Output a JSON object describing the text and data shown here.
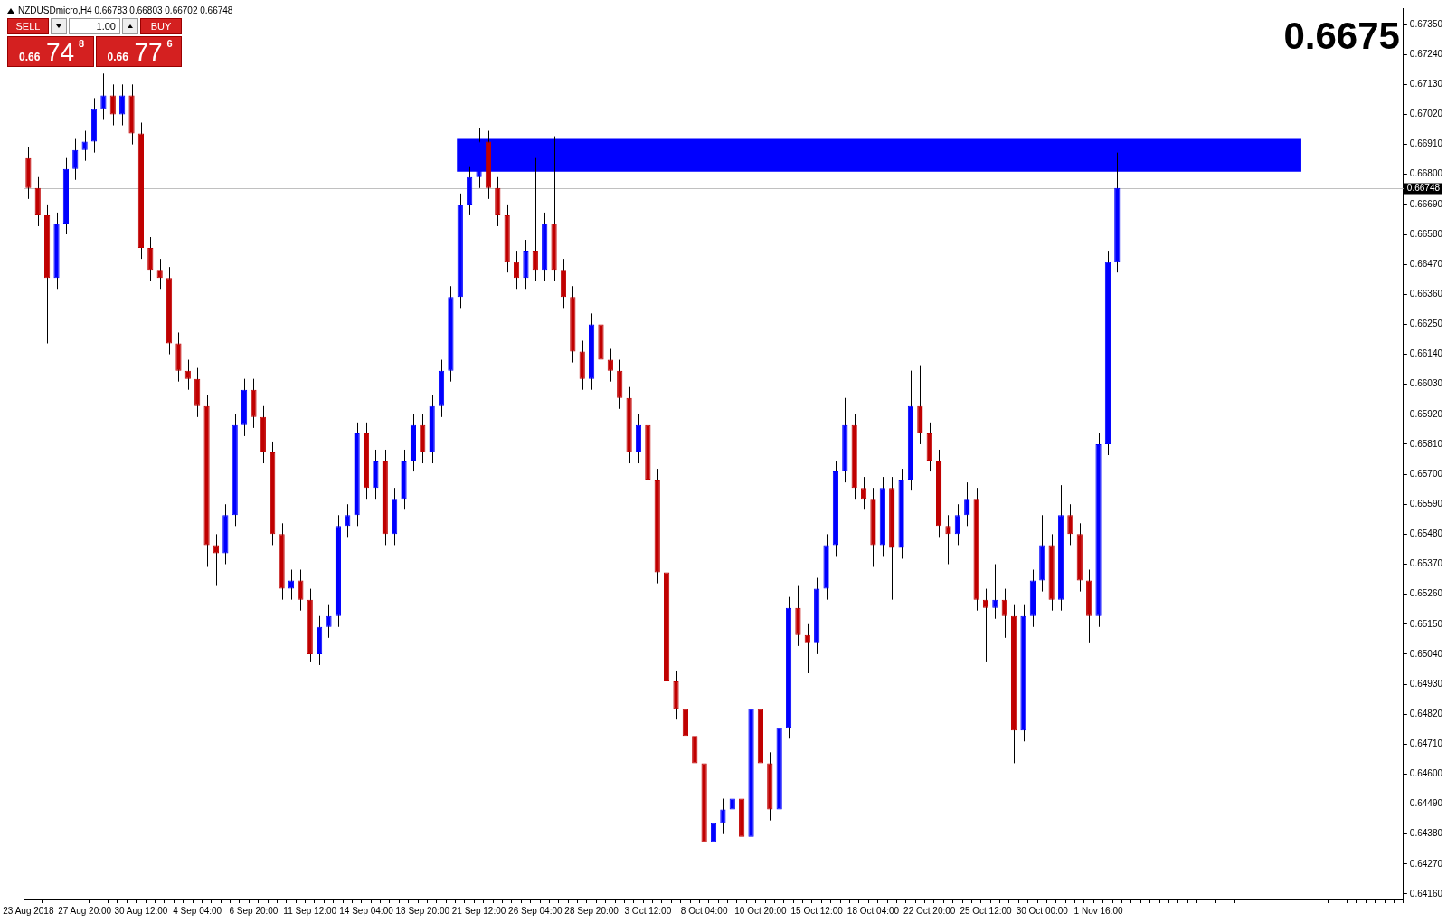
{
  "chart_data": {
    "type": "candlestick",
    "title": "NZDUSDmicro,H4  0.66783 0.66803 0.66702 0.66748",
    "categories": [
      "23 Aug 2018",
      null,
      null,
      null,
      null,
      null,
      "27 Aug 20:00",
      null,
      null,
      null,
      null,
      null,
      "30 Aug 12:00",
      null,
      null,
      null,
      null,
      null,
      "4 Sep 04:00",
      null,
      null,
      null,
      null,
      null,
      "6 Sep 20:00",
      null,
      null,
      null,
      null,
      null,
      "11 Sep 12:00",
      null,
      null,
      null,
      null,
      null,
      "14 Sep 04:00",
      null,
      null,
      null,
      null,
      null,
      "18 Sep 20:00",
      null,
      null,
      null,
      null,
      null,
      "21 Sep 12:00",
      null,
      null,
      null,
      null,
      null,
      "26 Sep 04:00",
      null,
      null,
      null,
      null,
      null,
      "28 Sep 20:00",
      null,
      null,
      null,
      null,
      null,
      "3 Oct 12:00",
      null,
      null,
      null,
      null,
      null,
      "8 Oct 04:00",
      null,
      null,
      null,
      null,
      null,
      "10 Oct 20:00",
      null,
      null,
      null,
      null,
      null,
      "15 Oct 12:00",
      null,
      null,
      null,
      null,
      null,
      "18 Oct 04:00",
      null,
      null,
      null,
      null,
      null,
      "22 Oct 20:00",
      null,
      null,
      null,
      null,
      null,
      "25 Oct 12:00",
      null,
      null,
      null,
      null,
      null,
      "30 Oct 00:00",
      null,
      null,
      null,
      null,
      null,
      "1 Nov 16:00",
      null,
      null,
      null,
      null,
      null,
      null,
      null,
      null,
      null,
      null,
      null,
      null,
      null,
      null,
      null,
      null,
      null,
      null,
      null,
      null,
      null,
      null,
      null,
      null,
      null,
      null,
      null,
      null,
      null,
      null,
      null,
      null
    ],
    "ohlc": [
      [
        0.6686,
        0.669,
        0.6671,
        0.6675
      ],
      [
        0.6675,
        0.6679,
        0.6661,
        0.6665
      ],
      [
        0.6665,
        0.6669,
        0.6618,
        0.6642
      ],
      [
        0.6642,
        0.6666,
        0.6638,
        0.6662
      ],
      [
        0.6662,
        0.6686,
        0.6658,
        0.6682
      ],
      [
        0.6682,
        0.6693,
        0.6678,
        0.6689
      ],
      [
        0.6689,
        0.6696,
        0.6685,
        0.6692
      ],
      [
        0.6692,
        0.6708,
        0.6688,
        0.6704
      ],
      [
        0.6704,
        0.6717,
        0.67,
        0.6709
      ],
      [
        0.6709,
        0.6713,
        0.6698,
        0.6702
      ],
      [
        0.6702,
        0.6713,
        0.6698,
        0.6709
      ],
      [
        0.6709,
        0.6713,
        0.6691,
        0.6695
      ],
      [
        0.6695,
        0.6699,
        0.6649,
        0.6653
      ],
      [
        0.6653,
        0.6657,
        0.6641,
        0.6645
      ],
      [
        0.6645,
        0.6649,
        0.6638,
        0.6642
      ],
      [
        0.6642,
        0.6646,
        0.6614,
        0.6618
      ],
      [
        0.6618,
        0.6622,
        0.6604,
        0.6608
      ],
      [
        0.6608,
        0.6612,
        0.6601,
        0.6605
      ],
      [
        0.6605,
        0.6609,
        0.6591,
        0.6595
      ],
      [
        0.6595,
        0.6599,
        0.6536,
        0.6544
      ],
      [
        0.6544,
        0.6548,
        0.6529,
        0.6541
      ],
      [
        0.6541,
        0.6559,
        0.6537,
        0.6555
      ],
      [
        0.6555,
        0.6592,
        0.6551,
        0.6588
      ],
      [
        0.6588,
        0.6605,
        0.6584,
        0.6601
      ],
      [
        0.6601,
        0.6605,
        0.6587,
        0.6591
      ],
      [
        0.6591,
        0.6595,
        0.6574,
        0.6578
      ],
      [
        0.6578,
        0.6582,
        0.6544,
        0.6548
      ],
      [
        0.6548,
        0.6552,
        0.6524,
        0.6528
      ],
      [
        0.6528,
        0.6535,
        0.6524,
        0.6531
      ],
      [
        0.6531,
        0.6535,
        0.652,
        0.6524
      ],
      [
        0.6524,
        0.6528,
        0.6501,
        0.6504
      ],
      [
        0.6504,
        0.6518,
        0.65,
        0.6514
      ],
      [
        0.6514,
        0.6522,
        0.651,
        0.6518
      ],
      [
        0.6518,
        0.6555,
        0.6514,
        0.6551
      ],
      [
        0.6551,
        0.6559,
        0.6547,
        0.6555
      ],
      [
        0.6555,
        0.6589,
        0.6551,
        0.6585
      ],
      [
        0.6585,
        0.6589,
        0.6561,
        0.6565
      ],
      [
        0.6565,
        0.6579,
        0.6561,
        0.6575
      ],
      [
        0.6575,
        0.6579,
        0.6544,
        0.6548
      ],
      [
        0.6548,
        0.6565,
        0.6544,
        0.6561
      ],
      [
        0.6561,
        0.6579,
        0.6557,
        0.6575
      ],
      [
        0.6575,
        0.6592,
        0.6571,
        0.6588
      ],
      [
        0.6588,
        0.6592,
        0.6574,
        0.6578
      ],
      [
        0.6578,
        0.6599,
        0.6574,
        0.6595
      ],
      [
        0.6595,
        0.6612,
        0.6591,
        0.6608
      ],
      [
        0.6608,
        0.6639,
        0.6604,
        0.6635
      ],
      [
        0.6635,
        0.6673,
        0.6631,
        0.6669
      ],
      [
        0.6669,
        0.6683,
        0.6665,
        0.6679
      ],
      [
        0.6679,
        0.6697,
        0.6675,
        0.6692
      ],
      [
        0.6692,
        0.6696,
        0.6671,
        0.6675
      ],
      [
        0.6675,
        0.6679,
        0.6661,
        0.6665
      ],
      [
        0.6665,
        0.6669,
        0.6644,
        0.6648
      ],
      [
        0.6648,
        0.6652,
        0.6638,
        0.6642
      ],
      [
        0.6642,
        0.6656,
        0.6638,
        0.6652
      ],
      [
        0.6652,
        0.6686,
        0.6641,
        0.6645
      ],
      [
        0.6645,
        0.6666,
        0.6641,
        0.6662
      ],
      [
        0.6662,
        0.6694,
        0.6641,
        0.6645
      ],
      [
        0.6645,
        0.6649,
        0.6631,
        0.6635
      ],
      [
        0.6635,
        0.6639,
        0.6611,
        0.6615
      ],
      [
        0.6615,
        0.6619,
        0.6601,
        0.6605
      ],
      [
        0.6605,
        0.6629,
        0.6601,
        0.6625
      ],
      [
        0.6625,
        0.6629,
        0.6608,
        0.6612
      ],
      [
        0.6612,
        0.6616,
        0.6604,
        0.6608
      ],
      [
        0.6608,
        0.6612,
        0.6594,
        0.6598
      ],
      [
        0.6598,
        0.6602,
        0.6574,
        0.6578
      ],
      [
        0.6578,
        0.6592,
        0.6574,
        0.6588
      ],
      [
        0.6588,
        0.6592,
        0.6564,
        0.6568
      ],
      [
        0.6568,
        0.6572,
        0.653,
        0.6534
      ],
      [
        0.6534,
        0.6538,
        0.649,
        0.6494
      ],
      [
        0.6494,
        0.6498,
        0.648,
        0.6484
      ],
      [
        0.6484,
        0.6488,
        0.647,
        0.6474
      ],
      [
        0.6474,
        0.6478,
        0.646,
        0.6464
      ],
      [
        0.6464,
        0.6468,
        0.6424,
        0.6435
      ],
      [
        0.6435,
        0.6446,
        0.6428,
        0.6442
      ],
      [
        0.6442,
        0.6451,
        0.6438,
        0.6447
      ],
      [
        0.6447,
        0.6455,
        0.6443,
        0.6451
      ],
      [
        0.6451,
        0.6455,
        0.6428,
        0.6437
      ],
      [
        0.6437,
        0.6494,
        0.6433,
        0.6484
      ],
      [
        0.6484,
        0.6488,
        0.646,
        0.6464
      ],
      [
        0.6464,
        0.6468,
        0.6443,
        0.6447
      ],
      [
        0.6447,
        0.6481,
        0.6443,
        0.6477
      ],
      [
        0.6477,
        0.6525,
        0.6473,
        0.6521
      ],
      [
        0.6521,
        0.6529,
        0.6507,
        0.6511
      ],
      [
        0.6511,
        0.6515,
        0.6497,
        0.6508
      ],
      [
        0.6508,
        0.6532,
        0.6504,
        0.6528
      ],
      [
        0.6528,
        0.6548,
        0.6524,
        0.6544
      ],
      [
        0.6544,
        0.6575,
        0.654,
        0.6571
      ],
      [
        0.6571,
        0.6598,
        0.6567,
        0.6588
      ],
      [
        0.6588,
        0.6592,
        0.6561,
        0.6565
      ],
      [
        0.6565,
        0.6569,
        0.6557,
        0.6561
      ],
      [
        0.6561,
        0.6565,
        0.6536,
        0.6544
      ],
      [
        0.6544,
        0.6569,
        0.654,
        0.6565
      ],
      [
        0.6565,
        0.6569,
        0.6524,
        0.6543
      ],
      [
        0.6543,
        0.6572,
        0.6539,
        0.6568
      ],
      [
        0.6568,
        0.6608,
        0.6564,
        0.6595
      ],
      [
        0.6595,
        0.661,
        0.6581,
        0.6585
      ],
      [
        0.6585,
        0.6589,
        0.6571,
        0.6575
      ],
      [
        0.6575,
        0.6579,
        0.6547,
        0.6551
      ],
      [
        0.6551,
        0.6555,
        0.6537,
        0.6548
      ],
      [
        0.6548,
        0.6559,
        0.6544,
        0.6555
      ],
      [
        0.6555,
        0.6567,
        0.6551,
        0.6561
      ],
      [
        0.6561,
        0.6565,
        0.652,
        0.6524
      ],
      [
        0.6524,
        0.6528,
        0.6501,
        0.6521
      ],
      [
        0.6521,
        0.6537,
        0.6517,
        0.6524
      ],
      [
        0.6524,
        0.6528,
        0.651,
        0.6518
      ],
      [
        0.6518,
        0.6522,
        0.6464,
        0.6476
      ],
      [
        0.6476,
        0.6522,
        0.6472,
        0.6518
      ],
      [
        0.6518,
        0.6535,
        0.6514,
        0.6531
      ],
      [
        0.6531,
        0.6555,
        0.6527,
        0.6544
      ],
      [
        0.6544,
        0.6548,
        0.652,
        0.6524
      ],
      [
        0.6524,
        0.6566,
        0.652,
        0.6555
      ],
      [
        0.6555,
        0.6559,
        0.6544,
        0.6548
      ],
      [
        0.6548,
        0.6552,
        0.6527,
        0.6531
      ],
      [
        0.6531,
        0.6535,
        0.6508,
        0.6518
      ],
      [
        0.6518,
        0.6585,
        0.6514,
        0.6581
      ],
      [
        0.6581,
        0.6652,
        0.6577,
        0.6648
      ],
      [
        0.6648,
        0.6688,
        0.6644,
        0.6675
      ],
      null,
      null,
      null,
      null,
      null,
      null,
      null,
      null,
      null,
      null,
      null,
      null,
      null,
      null,
      null,
      null,
      null,
      null,
      null,
      null,
      null,
      null,
      null,
      null,
      null,
      null,
      null,
      null,
      null,
      null
    ],
    "colors": [
      "#c00000",
      "#c00000",
      "#c00000",
      "#0000ff",
      "#0000ff",
      "#0000ff",
      "#0000ff",
      "#0000ff",
      "#0000ff",
      "#c00000",
      "#0000ff",
      "#c00000",
      "#c00000",
      "#c00000",
      "#c00000",
      "#c00000",
      "#c00000",
      "#c00000",
      "#c00000",
      "#c00000",
      "#c00000",
      "#0000ff",
      "#0000ff",
      "#0000ff",
      "#c00000",
      "#c00000",
      "#c00000",
      "#c00000",
      "#0000ff",
      "#c00000",
      "#c00000",
      "#0000ff",
      "#0000ff",
      "#0000ff",
      "#0000ff",
      "#0000ff",
      "#c00000",
      "#0000ff",
      "#c00000",
      "#0000ff",
      "#0000ff",
      "#0000ff",
      "#c00000",
      "#0000ff",
      "#0000ff",
      "#0000ff",
      "#0000ff",
      "#0000ff",
      "#0000ff",
      "#c00000",
      "#c00000",
      "#c00000",
      "#c00000",
      "#0000ff",
      "#c00000",
      "#0000ff",
      "#c00000",
      "#c00000",
      "#c00000",
      "#c00000",
      "#0000ff",
      "#c00000",
      "#c00000",
      "#c00000",
      "#c00000",
      "#0000ff",
      "#c00000",
      "#c00000",
      "#c00000",
      "#c00000",
      "#c00000",
      "#c00000",
      "#c00000",
      "#0000ff",
      "#0000ff",
      "#0000ff",
      "#c00000",
      "#0000ff",
      "#c00000",
      "#c00000",
      "#0000ff",
      "#0000ff",
      "#c00000",
      "#c00000",
      "#0000ff",
      "#0000ff",
      "#0000ff",
      "#0000ff",
      "#c00000",
      "#c00000",
      "#c00000",
      "#0000ff",
      "#c00000",
      "#0000ff",
      "#0000ff",
      "#c00000",
      "#c00000",
      "#c00000",
      "#c00000",
      "#0000ff",
      "#0000ff",
      "#c00000",
      "#c00000",
      "#0000ff",
      "#c00000",
      "#c00000",
      "#0000ff",
      "#0000ff",
      "#0000ff",
      "#c00000",
      "#0000ff",
      "#c00000",
      "#c00000",
      "#c00000",
      "#0000ff",
      "#0000ff",
      "#0000ff",
      null,
      null,
      null,
      null,
      null,
      null,
      null,
      null,
      null,
      null,
      null,
      null,
      null,
      null,
      null,
      null,
      null,
      null,
      null,
      null,
      null,
      null,
      null,
      null,
      null,
      null,
      null,
      null,
      null,
      null
    ],
    "ylim": [
      0.6414,
      0.6741
    ],
    "yticks": [
      {
        "value": 0.6735,
        "label": "0.67350"
      },
      {
        "value": 0.6724,
        "label": "0.67240"
      },
      {
        "value": 0.6713,
        "label": "0.67130"
      },
      {
        "value": 0.6702,
        "label": "0.67020"
      },
      {
        "value": 0.6691,
        "label": "0.66910"
      },
      {
        "value": 0.668,
        "label": "0.66800"
      },
      {
        "value": 0.6669,
        "label": "0.66690"
      },
      {
        "value": 0.6658,
        "label": "0.66580"
      },
      {
        "value": 0.6647,
        "label": "0.66470"
      },
      {
        "value": 0.6636,
        "label": "0.66360"
      },
      {
        "value": 0.6625,
        "label": "0.66250"
      },
      {
        "value": 0.6614,
        "label": "0.66140"
      },
      {
        "value": 0.6603,
        "label": "0.66030"
      },
      {
        "value": 0.6592,
        "label": "0.65920"
      },
      {
        "value": 0.6581,
        "label": "0.65810"
      },
      {
        "value": 0.657,
        "label": "0.65700"
      },
      {
        "value": 0.6559,
        "label": "0.65590"
      },
      {
        "value": 0.6548,
        "label": "0.65480"
      },
      {
        "value": 0.6537,
        "label": "0.65370"
      },
      {
        "value": 0.6526,
        "label": "0.65260"
      },
      {
        "value": 0.6515,
        "label": "0.65150"
      },
      {
        "value": 0.6504,
        "label": "0.65040"
      },
      {
        "value": 0.6493,
        "label": "0.64930"
      },
      {
        "value": 0.6482,
        "label": "0.64820"
      },
      {
        "value": 0.6471,
        "label": "0.64710"
      },
      {
        "value": 0.646,
        "label": "0.64600"
      },
      {
        "value": 0.6449,
        "label": "0.64490"
      },
      {
        "value": 0.6438,
        "label": "0.64380"
      },
      {
        "value": 0.6427,
        "label": "0.64270"
      },
      {
        "value": 0.6416,
        "label": "0.64160"
      }
    ],
    "ref_lines": [
      {
        "axis": "y",
        "value": 0.66748,
        "label": "0.66748",
        "color": "#c0c0c0"
      }
    ],
    "bands": [
      {
        "axis": "y",
        "from": 0.6681,
        "to": 0.6693,
        "color": "#0000ff"
      }
    ],
    "annotations": [
      "0.6675",
      "SELL",
      "1.00",
      "BUY",
      "0.66",
      "74",
      "8",
      "0.66",
      "77",
      "6"
    ]
  }
}
